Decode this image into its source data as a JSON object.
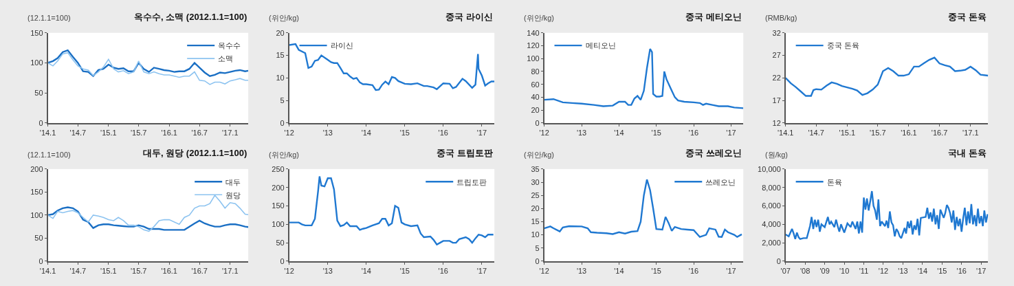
{
  "chart_data": [
    {
      "type": "line",
      "title": "옥수수, 소맥 (2012.1.1=100)",
      "ylabel": "(12.1.1=100)",
      "legend": "top right",
      "xlim": [
        "2014-01-01",
        "2017-04-20"
      ],
      "xticks": [
        {
          "value": "2014-01-01",
          "label": "'14.1"
        },
        {
          "value": "2014-07-01",
          "label": "'14.7"
        },
        {
          "value": "2015-01-01",
          "label": "'15.1"
        },
        {
          "value": "2015-07-01",
          "label": "'15.7"
        },
        {
          "value": "2016-01-01",
          "label": "'16.1"
        },
        {
          "value": "2016-07-01",
          "label": "'16.7"
        },
        {
          "value": "2017-01-01",
          "label": "'17.1"
        }
      ],
      "ylim": [
        0,
        150
      ],
      "yticks": [
        0,
        50,
        100,
        150
      ],
      "x": [
        "2014-01",
        "2014-02",
        "2014-03",
        "2014-04",
        "2014-05",
        "2014-06",
        "2014-07",
        "2014-08",
        "2014-09",
        "2014-10",
        "2014-11",
        "2014-12",
        "2015-01",
        "2015-02",
        "2015-03",
        "2015-04",
        "2015-05",
        "2015-06",
        "2015-07",
        "2015-08",
        "2015-09",
        "2015-10",
        "2015-11",
        "2015-12",
        "2016-01",
        "2016-02",
        "2016-03",
        "2016-04",
        "2016-05",
        "2016-06",
        "2016-07",
        "2016-08",
        "2016-09",
        "2016-10",
        "2016-11",
        "2016-12",
        "2017-01",
        "2017-02",
        "2017-03",
        "2017-04",
        "2017-04-20"
      ],
      "series": [
        {
          "name": "옥수수",
          "color": "#1a6fc4",
          "values": [
            100,
            103,
            108,
            118,
            121,
            110,
            100,
            86,
            85,
            78,
            88,
            90,
            97,
            92,
            90,
            91,
            86,
            86,
            100,
            90,
            85,
            92,
            90,
            88,
            87,
            85,
            86,
            86,
            90,
            100,
            92,
            84,
            78,
            80,
            84,
            83,
            85,
            87,
            88,
            86,
            87
          ]
        },
        {
          "name": "소맥",
          "color": "#8cc3f0",
          "values": [
            100,
            95,
            103,
            115,
            117,
            105,
            95,
            90,
            88,
            79,
            85,
            93,
            106,
            90,
            85,
            87,
            82,
            85,
            103,
            85,
            82,
            85,
            82,
            80,
            80,
            78,
            76,
            78,
            78,
            85,
            71,
            70,
            64,
            68,
            68,
            65,
            70,
            72,
            74,
            71,
            71
          ]
        }
      ]
    },
    {
      "type": "line",
      "title": "중국 라이신",
      "ylabel": "(위안/kg)",
      "legend": "top left",
      "xlim": [
        "2012-01-01",
        "2017-04-30"
      ],
      "xticks": [
        {
          "value": "2012-01-01",
          "label": "'12"
        },
        {
          "value": "2013-01-01",
          "label": "'13"
        },
        {
          "value": "2014-01-01",
          "label": "'14"
        },
        {
          "value": "2015-01-01",
          "label": "'15"
        },
        {
          "value": "2016-01-01",
          "label": "'16"
        },
        {
          "value": "2017-01-01",
          "label": "'17"
        }
      ],
      "ylim": [
        0,
        20
      ],
      "yticks": [
        0,
        5,
        10,
        15,
        20
      ],
      "x": [
        "2012-01",
        "2012-03",
        "2012-04",
        "2012-06",
        "2012-07",
        "2012-08",
        "2012-09",
        "2012-10",
        "2012-11",
        "2013-01",
        "2013-02",
        "2013-03",
        "2013-04",
        "2013-05",
        "2013-06",
        "2013-07",
        "2013-08",
        "2013-09",
        "2013-10",
        "2013-11",
        "2013-12",
        "2014-01",
        "2014-03",
        "2014-04",
        "2014-05",
        "2014-06",
        "2014-07",
        "2014-08",
        "2014-09",
        "2014-10",
        "2014-11",
        "2015-01",
        "2015-03",
        "2015-05",
        "2015-07",
        "2015-08",
        "2015-10",
        "2015-11",
        "2016-01",
        "2016-03",
        "2016-04",
        "2016-05",
        "2016-07",
        "2016-08",
        "2016-10",
        "2016-11",
        "2016-11-25",
        "2016-12",
        "2017-01",
        "2017-02",
        "2017-03",
        "2017-04",
        "2017-04-30"
      ],
      "series": [
        {
          "name": "라이신",
          "color": "#1f78d1",
          "values": [
            17.3,
            17.5,
            16.2,
            15.5,
            12.2,
            12.5,
            13.8,
            14,
            15,
            14,
            13.5,
            13.3,
            13.3,
            12.2,
            11,
            11,
            10.3,
            9.8,
            10,
            9,
            8.6,
            8.6,
            8.4,
            7.3,
            7.4,
            8.5,
            9.2,
            8.6,
            10.2,
            10,
            9.3,
            8.7,
            8.6,
            8.8,
            8.2,
            8.2,
            7.9,
            7.5,
            8.8,
            8.7,
            7.7,
            8,
            9.8,
            9.3,
            7.8,
            8.5,
            15.3,
            12,
            10.5,
            8.3,
            8.8,
            9.2,
            9.2
          ]
        }
      ]
    },
    {
      "type": "line",
      "title": "중국 메티오닌",
      "ylabel": "(위안/kg)",
      "legend": "top left",
      "xlim": [
        "2012-01-01",
        "2017-04-30"
      ],
      "xticks": [
        {
          "value": "2012-01-01",
          "label": "'12"
        },
        {
          "value": "2013-01-01",
          "label": "'13"
        },
        {
          "value": "2014-01-01",
          "label": "'14"
        },
        {
          "value": "2015-01-01",
          "label": "'15"
        },
        {
          "value": "2016-01-01",
          "label": "'16"
        },
        {
          "value": "2017-01-01",
          "label": "'17"
        }
      ],
      "ylim": [
        0,
        140
      ],
      "yticks": [
        0,
        20,
        40,
        60,
        80,
        100,
        120,
        140
      ],
      "x": [
        "2012-01",
        "2012-04",
        "2012-07",
        "2012-10",
        "2013-01",
        "2013-05",
        "2013-08",
        "2013-11",
        "2014-01",
        "2014-03",
        "2014-04",
        "2014-05",
        "2014-06",
        "2014-07",
        "2014-08",
        "2014-09",
        "2014-10",
        "2014-11",
        "2014-11-20",
        "2014-12",
        "2015-01",
        "2015-02",
        "2015-03",
        "2015-03-20",
        "2015-04-10",
        "2015-06",
        "2015-07",
        "2015-08",
        "2015-10",
        "2016-01",
        "2016-03",
        "2016-04",
        "2016-05",
        "2016-07",
        "2016-09",
        "2016-12",
        "2017-02",
        "2017-04-30"
      ],
      "series": [
        {
          "name": "메티오닌",
          "color": "#1f78d1",
          "values": [
            36,
            37,
            32,
            31,
            30,
            28,
            26,
            27,
            33,
            33,
            28,
            28,
            38,
            42,
            36,
            50,
            85,
            115,
            110,
            45,
            41,
            41,
            42,
            80,
            68,
            50,
            40,
            35,
            33,
            32,
            31,
            28,
            30,
            28,
            26,
            26,
            24,
            23
          ]
        }
      ]
    },
    {
      "type": "line",
      "title": "중국 돈육",
      "ylabel": "(RMB/kg)",
      "legend": "top left",
      "xlim": [
        "2014-01-01",
        "2017-04-15"
      ],
      "xticks": [
        {
          "value": "2014-01-01",
          "label": "'14.1"
        },
        {
          "value": "2014-07-01",
          "label": "'14.7"
        },
        {
          "value": "2015-01-01",
          "label": "'15.1"
        },
        {
          "value": "2015-07-01",
          "label": "'15.7"
        },
        {
          "value": "2016-01-01",
          "label": "'16.1"
        },
        {
          "value": "2016-07-01",
          "label": "'16.7"
        },
        {
          "value": "2017-01-01",
          "label": "'17.1"
        }
      ],
      "ylim": [
        12,
        32
      ],
      "yticks": [
        12,
        17,
        22,
        27,
        32
      ],
      "x": [
        "2014-01",
        "2014-02",
        "2014-03",
        "2014-04",
        "2014-05",
        "2014-06",
        "2014-06-15",
        "2014-07",
        "2014-08",
        "2014-09",
        "2014-10",
        "2014-11",
        "2014-12",
        "2015-01",
        "2015-02",
        "2015-03",
        "2015-04",
        "2015-05",
        "2015-06",
        "2015-07",
        "2015-08",
        "2015-09",
        "2015-10",
        "2015-11",
        "2015-12",
        "2016-01",
        "2016-02",
        "2016-03",
        "2016-04",
        "2016-05",
        "2016-06",
        "2016-07",
        "2016-08",
        "2016-09",
        "2016-10",
        "2016-11",
        "2016-12",
        "2017-01",
        "2017-02",
        "2017-03",
        "2017-04-15"
      ],
      "series": [
        {
          "name": "중국 돈육",
          "color": "#1f78d1",
          "values": [
            22,
            20.8,
            20,
            19,
            18,
            18,
            19.3,
            19.5,
            19.4,
            20.3,
            21,
            20.7,
            20.2,
            19.9,
            19.6,
            19.2,
            18.2,
            18.6,
            19.4,
            20.5,
            23.5,
            24.2,
            23.5,
            22.5,
            22.5,
            22.8,
            24.5,
            24.5,
            25.3,
            26,
            26.5,
            25.2,
            24.8,
            24.5,
            23.5,
            23.6,
            23.8,
            24.5,
            23.7,
            22.7,
            22.5
          ]
        }
      ]
    },
    {
      "type": "line",
      "title": "대두, 원당 (2012.1.1=100)",
      "ylabel": "(12.1.1=100)",
      "legend": "top right",
      "xlim": [
        "2014-01-01",
        "2017-04-20"
      ],
      "xticks": [
        {
          "value": "2014-01-01",
          "label": "'14.1"
        },
        {
          "value": "2014-07-01",
          "label": "'14.7"
        },
        {
          "value": "2015-01-01",
          "label": "'15.1"
        },
        {
          "value": "2015-07-01",
          "label": "'15.7"
        },
        {
          "value": "2016-01-01",
          "label": "'16.1"
        },
        {
          "value": "2016-07-01",
          "label": "'16.7"
        },
        {
          "value": "2017-01-01",
          "label": "'17.1"
        }
      ],
      "ylim": [
        0,
        200
      ],
      "yticks": [
        0,
        50,
        100,
        150,
        200
      ],
      "x": [
        "2014-01",
        "2014-02",
        "2014-03",
        "2014-04",
        "2014-05",
        "2014-06",
        "2014-07",
        "2014-08",
        "2014-09",
        "2014-10",
        "2014-11",
        "2014-12",
        "2015-01",
        "2015-02",
        "2015-03",
        "2015-04",
        "2015-05",
        "2015-06",
        "2015-07",
        "2015-08",
        "2015-09",
        "2015-10",
        "2015-11",
        "2015-12",
        "2016-01",
        "2016-02",
        "2016-03",
        "2016-04",
        "2016-05",
        "2016-06",
        "2016-07",
        "2016-08",
        "2016-09",
        "2016-10",
        "2016-11",
        "2016-12",
        "2017-01",
        "2017-02",
        "2017-03",
        "2017-04",
        "2017-04-20"
      ],
      "series": [
        {
          "name": "대두",
          "color": "#1a6fc4",
          "values": [
            100,
            102,
            110,
            115,
            117,
            115,
            108,
            90,
            85,
            72,
            78,
            80,
            80,
            78,
            77,
            76,
            75,
            75,
            78,
            75,
            70,
            70,
            70,
            68,
            68,
            68,
            68,
            68,
            75,
            82,
            88,
            82,
            78,
            75,
            75,
            78,
            80,
            80,
            78,
            75,
            74
          ]
        },
        {
          "name": "원당",
          "color": "#8cc3f0",
          "values": [
            100,
            93,
            108,
            105,
            108,
            110,
            105,
            95,
            85,
            100,
            98,
            95,
            90,
            88,
            95,
            88,
            78,
            78,
            75,
            68,
            65,
            75,
            88,
            90,
            90,
            85,
            80,
            95,
            100,
            115,
            120,
            120,
            125,
            143,
            130,
            115,
            127,
            125,
            115,
            102,
            101
          ]
        }
      ]
    },
    {
      "type": "line",
      "title": "중국 트립토판",
      "ylabel": "(위안/kg)",
      "legend": "top right",
      "xlim": [
        "2012-01-01",
        "2017-04-30"
      ],
      "xticks": [
        {
          "value": "2012-01-01",
          "label": "'12"
        },
        {
          "value": "2013-01-01",
          "label": "'13"
        },
        {
          "value": "2014-01-01",
          "label": "'14"
        },
        {
          "value": "2015-01-01",
          "label": "'15"
        },
        {
          "value": "2016-01-01",
          "label": "'16"
        },
        {
          "value": "2017-01-01",
          "label": "'17"
        }
      ],
      "ylim": [
        0,
        250
      ],
      "yticks": [
        0,
        50,
        100,
        150,
        200,
        250
      ],
      "x": [
        "2012-01",
        "2012-04",
        "2012-05",
        "2012-06",
        "2012-08",
        "2012-09",
        "2012-10",
        "2012-10-15",
        "2012-11",
        "2012-12",
        "2013-01",
        "2013-02",
        "2013-03",
        "2013-04",
        "2013-05",
        "2013-06",
        "2013-07",
        "2013-08",
        "2013-10",
        "2013-11",
        "2013-12",
        "2014-01",
        "2014-03",
        "2014-05",
        "2014-06",
        "2014-07",
        "2014-08",
        "2014-09",
        "2014-10",
        "2014-11",
        "2014-12",
        "2015-01",
        "2015-03",
        "2015-05",
        "2015-06",
        "2015-07",
        "2015-09",
        "2015-10",
        "2015-11",
        "2015-12",
        "2016-01",
        "2016-03",
        "2016-04",
        "2016-05",
        "2016-06",
        "2016-08",
        "2016-09",
        "2016-10",
        "2016-11",
        "2016-12",
        "2017-01",
        "2017-02",
        "2017-03",
        "2017-04-20"
      ],
      "series": [
        {
          "name": "트립토판",
          "color": "#1f78d1",
          "values": [
            105,
            105,
            100,
            97,
            97,
            115,
            190,
            230,
            205,
            203,
            225,
            225,
            195,
            110,
            95,
            98,
            105,
            95,
            95,
            85,
            88,
            90,
            97,
            103,
            115,
            115,
            97,
            103,
            150,
            145,
            105,
            100,
            95,
            97,
            75,
            65,
            67,
            58,
            45,
            50,
            55,
            55,
            50,
            50,
            60,
            65,
            60,
            50,
            62,
            72,
            70,
            65,
            72,
            72
          ]
        }
      ]
    },
    {
      "type": "line",
      "title": "중국 쓰레오닌",
      "ylabel": "(위안/kg)",
      "legend": "top right",
      "xlim": [
        "2012-01-01",
        "2017-04-30"
      ],
      "xticks": [
        {
          "value": "2012-01-01",
          "label": "'12"
        },
        {
          "value": "2013-01-01",
          "label": "'13"
        },
        {
          "value": "2014-01-01",
          "label": "'14"
        },
        {
          "value": "2015-01-01",
          "label": "'15"
        },
        {
          "value": "2016-01-01",
          "label": "'16"
        },
        {
          "value": "2017-01-01",
          "label": "'17"
        }
      ],
      "ylim": [
        0,
        35
      ],
      "yticks": [
        0,
        5,
        10,
        15,
        20,
        25,
        30,
        35
      ],
      "x": [
        "2012-01",
        "2012-03",
        "2012-04",
        "2012-06",
        "2012-07",
        "2012-09",
        "2013-01",
        "2013-03",
        "2013-04",
        "2013-06",
        "2013-09",
        "2013-11",
        "2014-01",
        "2014-03",
        "2014-05",
        "2014-07",
        "2014-08",
        "2014-09",
        "2014-10",
        "2014-11",
        "2014-12",
        "2015-01",
        "2015-03",
        "2015-04",
        "2015-05",
        "2015-06",
        "2015-07",
        "2015-09",
        "2015-11",
        "2016-01",
        "2016-03",
        "2016-05",
        "2016-06",
        "2016-08",
        "2016-09",
        "2016-10",
        "2016-11",
        "2016-12",
        "2017-02",
        "2017-03",
        "2017-04-15"
      ],
      "series": [
        {
          "name": "쓰레오닌",
          "color": "#1f78d1",
          "values": [
            12.5,
            13.2,
            12.5,
            11.3,
            12.8,
            13.3,
            13.2,
            12.5,
            11,
            10.8,
            10.6,
            10.3,
            11,
            10.5,
            11.2,
            11.4,
            15,
            25,
            31,
            27,
            20,
            12.2,
            12,
            16.8,
            14.5,
            11.5,
            13,
            12.2,
            12,
            11.8,
            9.2,
            10,
            12.5,
            12,
            9.3,
            9.2,
            12,
            11,
            10,
            9.2,
            10.2
          ]
        }
      ]
    },
    {
      "type": "line",
      "title": "국내 돈육",
      "ylabel": "(원/kg)",
      "legend": "top left",
      "xlim": [
        "2007-01-01",
        "2017-05-10"
      ],
      "xticks": [
        {
          "value": "2007-01-01",
          "label": "'07"
        },
        {
          "value": "2008-01-01",
          "label": "'08"
        },
        {
          "value": "2009-01-01",
          "label": "'09"
        },
        {
          "value": "2010-01-01",
          "label": "'10"
        },
        {
          "value": "2011-01-01",
          "label": "'11"
        },
        {
          "value": "2012-01-01",
          "label": "'12"
        },
        {
          "value": "2013-01-01",
          "label": "'13"
        },
        {
          "value": "2014-01-01",
          "label": "'14"
        },
        {
          "value": "2015-01-01",
          "label": "'15"
        },
        {
          "value": "2016-01-01",
          "label": "'16"
        },
        {
          "value": "2017-01-01",
          "label": "'17"
        }
      ],
      "ylim": [
        0,
        10000
      ],
      "yticks": [
        0,
        {
          "value": 2000,
          "label": "2,000"
        },
        {
          "value": 4000,
          "label": "4,000"
        },
        {
          "value": 6000,
          "label": "6,000"
        },
        {
          "value": 8000,
          "label": "8,000"
        },
        {
          "value": 10000,
          "label": "10,000"
        }
      ],
      "x": [
        "2007-01",
        "2007-03",
        "2007-05",
        "2007-06",
        "2007-07",
        "2007-08",
        "2007-09",
        "2007-10",
        "2007-12",
        "2008-02",
        "2008-04",
        "2008-05",
        "2008-06",
        "2008-07",
        "2008-08",
        "2008-09",
        "2008-10",
        "2008-11",
        "2009-01",
        "2009-03",
        "2009-04",
        "2009-05",
        "2009-07",
        "2009-08",
        "2009-09",
        "2009-10",
        "2009-11",
        "2010-01",
        "2010-03",
        "2010-05",
        "2010-06",
        "2010-08",
        "2010-09",
        "2010-10",
        "2010-11",
        "2010-12",
        "2011-01",
        "2011-02",
        "2011-03",
        "2011-04",
        "2011-05",
        "2011-06",
        "2011-07",
        "2011-08",
        "2011-09",
        "2011-10",
        "2011-11",
        "2011-12",
        "2012-02",
        "2012-03",
        "2012-04",
        "2012-05",
        "2012-06",
        "2012-07",
        "2012-08",
        "2012-09",
        "2012-10",
        "2012-11",
        "2012-12",
        "2013-02",
        "2013-03",
        "2013-04",
        "2013-05",
        "2013-06",
        "2013-07",
        "2013-08",
        "2013-09",
        "2013-10",
        "2013-11",
        "2013-12",
        "2014-03",
        "2014-04",
        "2014-05",
        "2014-06",
        "2014-07",
        "2014-08",
        "2014-09",
        "2014-10",
        "2014-11",
        "2014-12",
        "2015-02",
        "2015-03",
        "2015-04",
        "2015-05",
        "2015-06",
        "2015-07",
        "2015-08",
        "2015-09",
        "2015-10",
        "2015-11",
        "2015-12",
        "2016-01",
        "2016-02",
        "2016-03",
        "2016-04",
        "2016-05",
        "2016-06",
        "2016-07",
        "2016-08",
        "2016-09",
        "2016-10",
        "2016-11",
        "2016-12",
        "2017-01",
        "2017-02",
        "2017-03",
        "2017-04",
        "2017-05"
      ],
      "series": [
        {
          "name": "돈육",
          "color": "#1f78d1",
          "values": [
            2900,
            2700,
            3500,
            3000,
            2400,
            3100,
            2600,
            2400,
            2500,
            2500,
            3800,
            4800,
            3500,
            4500,
            3700,
            4500,
            3200,
            4000,
            3700,
            4800,
            4000,
            4300,
            3700,
            4500,
            3800,
            3200,
            4000,
            3100,
            4100,
            3700,
            4300,
            3500,
            4300,
            3000,
            4300,
            3100,
            6900,
            5600,
            6800,
            5500,
            6500,
            7600,
            6000,
            5500,
            4500,
            6700,
            3800,
            4300,
            3800,
            4400,
            3600,
            5400,
            4200,
            3900,
            2700,
            3500,
            3200,
            2700,
            2500,
            3600,
            3000,
            4300,
            3600,
            4400,
            2900,
            3900,
            3400,
            4600,
            2800,
            4700,
            4800,
            5800,
            4600,
            5300,
            4300,
            5700,
            4000,
            5000,
            3500,
            5600,
            4700,
            5200,
            6100,
            5800,
            5200,
            4200,
            5500,
            3400,
            4800,
            3800,
            4600,
            3200,
            4700,
            5800,
            3900,
            5400,
            4100,
            6200,
            4000,
            5000,
            3800,
            5700,
            4100,
            4900,
            3800,
            5500,
            4200,
            5100
          ]
        }
      ]
    }
  ]
}
